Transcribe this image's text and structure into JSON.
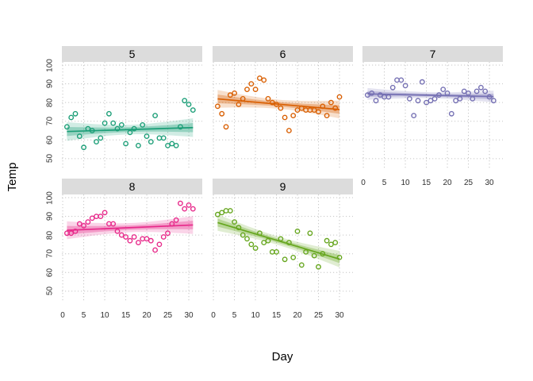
{
  "figure": {
    "ylabel": "Temp",
    "xlabel": "Day"
  },
  "chart_data": {
    "type": "scatter",
    "title": "",
    "xlabel": "Day",
    "ylabel": "Temp",
    "facet_variable_values": [
      "5",
      "6",
      "7",
      "8",
      "9"
    ],
    "x_tick_labels": [
      "0",
      "5",
      "10",
      "15",
      "20",
      "25",
      "30"
    ],
    "y_tick_labels": [
      "50",
      "60",
      "70",
      "80",
      "90",
      "100"
    ],
    "x_range": [
      -0.2,
      33.2
    ],
    "y_range": [
      44.0,
      101.7
    ],
    "grid": "dotted gray major gridlines, no axis tick marks, white panel background",
    "legend_position": "none",
    "smoother": "per-facet linear fit line with nested inner (~68%) and outer (~95%) confidence bands in facet color",
    "point_style": "open circles in facet color",
    "strip_background": "#dcdcdc",
    "gridline_color": "#c6c6c6",
    "facets": [
      {
        "label": "5",
        "color": "#1B9E77",
        "x": [
          1,
          2,
          3,
          4,
          5,
          6,
          7,
          8,
          9,
          10,
          11,
          12,
          13,
          14,
          15,
          16,
          17,
          18,
          19,
          20,
          21,
          22,
          23,
          24,
          25,
          26,
          27,
          28,
          29,
          30,
          31
        ],
        "y": [
          67,
          72,
          74,
          62,
          56,
          66,
          65,
          59,
          61,
          69,
          74,
          69,
          66,
          68,
          58,
          64,
          66,
          57,
          68,
          62,
          59,
          73,
          61,
          61,
          57,
          58,
          57,
          67,
          81,
          79,
          76
        ]
      },
      {
        "label": "6",
        "color": "#D95F02",
        "x": [
          1,
          2,
          3,
          4,
          5,
          6,
          7,
          8,
          9,
          10,
          11,
          12,
          13,
          14,
          15,
          16,
          17,
          18,
          19,
          20,
          21,
          22,
          23,
          24,
          25,
          26,
          27,
          28,
          29,
          30
        ],
        "y": [
          78,
          74,
          67,
          84,
          85,
          79,
          82,
          87,
          90,
          87,
          93,
          92,
          82,
          80,
          79,
          77,
          72,
          65,
          73,
          76,
          77,
          76,
          76,
          76,
          75,
          78,
          73,
          80,
          77,
          83
        ]
      },
      {
        "label": "7",
        "color": "#7570B3",
        "x": [
          1,
          2,
          3,
          4,
          5,
          6,
          7,
          8,
          9,
          10,
          11,
          12,
          13,
          14,
          15,
          16,
          17,
          18,
          19,
          20,
          21,
          22,
          23,
          24,
          25,
          26,
          27,
          28,
          29,
          30,
          31
        ],
        "y": [
          84,
          85,
          81,
          84,
          83,
          83,
          88,
          92,
          92,
          89,
          82,
          73,
          81,
          91,
          80,
          81,
          82,
          84,
          87,
          85,
          74,
          81,
          82,
          86,
          85,
          82,
          86,
          88,
          86,
          83,
          81
        ]
      },
      {
        "label": "8",
        "color": "#E7298A",
        "x": [
          1,
          2,
          3,
          4,
          5,
          6,
          7,
          8,
          9,
          10,
          11,
          12,
          13,
          14,
          15,
          16,
          17,
          18,
          19,
          20,
          21,
          22,
          23,
          24,
          25,
          26,
          27,
          28,
          29,
          30,
          31
        ],
        "y": [
          81,
          81,
          82,
          86,
          85,
          87,
          89,
          90,
          90,
          92,
          86,
          86,
          82,
          80,
          79,
          77,
          79,
          76,
          78,
          78,
          77,
          72,
          75,
          79,
          81,
          86,
          88,
          97,
          94,
          96,
          94
        ]
      },
      {
        "label": "9",
        "color": "#66A61E",
        "x": [
          1,
          2,
          3,
          4,
          5,
          6,
          7,
          8,
          9,
          10,
          11,
          12,
          13,
          14,
          15,
          16,
          17,
          18,
          19,
          20,
          21,
          22,
          23,
          24,
          25,
          26,
          27,
          28,
          29,
          30
        ],
        "y": [
          91,
          92,
          93,
          93,
          87,
          84,
          80,
          78,
          75,
          73,
          81,
          76,
          77,
          71,
          71,
          78,
          67,
          76,
          68,
          82,
          64,
          71,
          81,
          69,
          63,
          70,
          77,
          75,
          76,
          68
        ]
      }
    ]
  }
}
